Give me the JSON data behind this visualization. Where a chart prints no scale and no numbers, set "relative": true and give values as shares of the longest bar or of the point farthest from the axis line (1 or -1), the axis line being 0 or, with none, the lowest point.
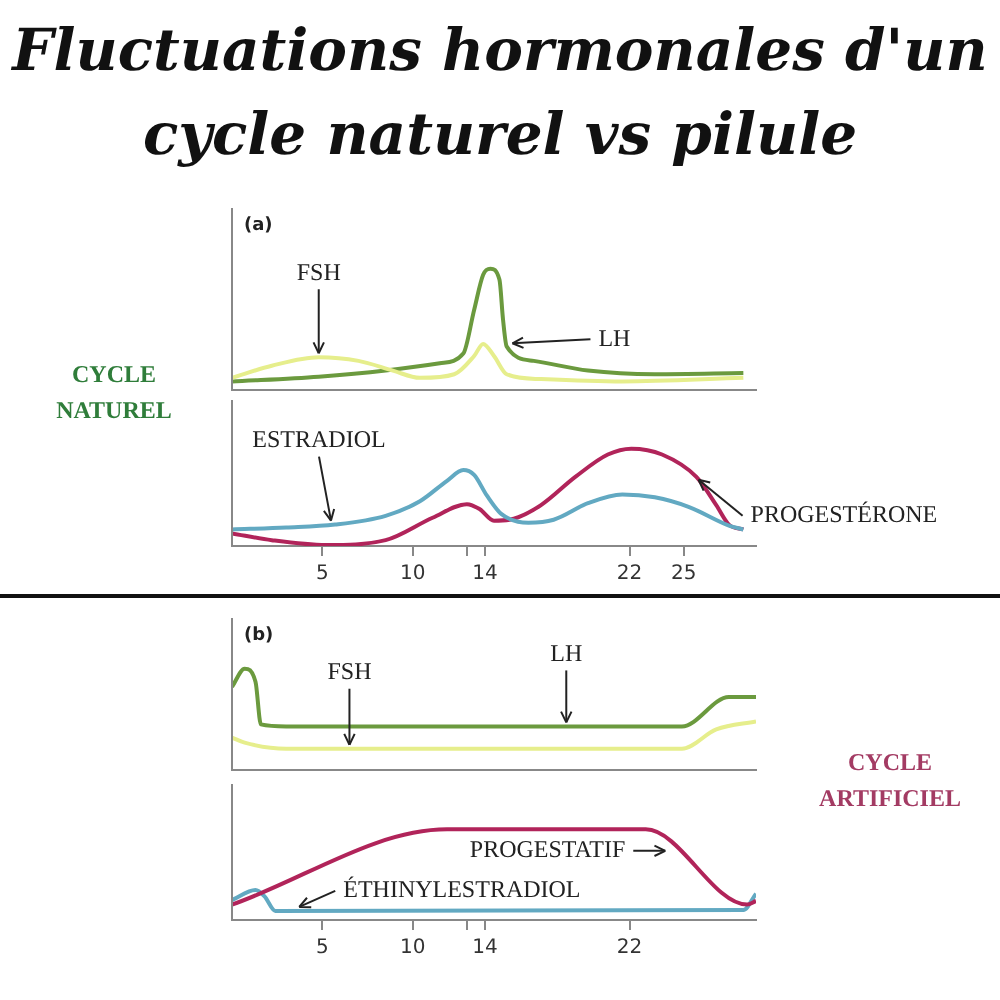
{
  "chart_data": [
    {
      "type": "line",
      "title": "Fluctuations hormonales d'un cycle naturel vs pilule",
      "annotations": [
        "(a)",
        "CYCLE NATUREL"
      ],
      "relative": true,
      "xlim": [
        0,
        29
      ],
      "tick_labels": false,
      "marker": "none",
      "line_style": "solid",
      "series": [
        {
          "name": "FSH",
          "color": "#e6ee8c",
          "x": [
            0,
            2.2,
            4.8,
            7.0,
            8.9,
            10.4,
            12.3,
            13.4,
            13.9,
            14.5,
            15.2,
            17.1,
            21.6,
            28.3
          ],
          "values": [
            0.1,
            0.2,
            0.27,
            0.24,
            0.16,
            0.1,
            0.13,
            0.28,
            0.38,
            0.28,
            0.13,
            0.09,
            0.07,
            0.1
          ]
        },
        {
          "name": "LH",
          "color": "#6b9a3e",
          "x": [
            0,
            4.8,
            8.5,
            11.5,
            12.8,
            13.4,
            13.9,
            14.3,
            14.8,
            15.0,
            15.2,
            16.7,
            19.7,
            23.4,
            28.3
          ],
          "values": [
            0.07,
            0.11,
            0.16,
            0.22,
            0.3,
            0.66,
            0.95,
            1,
            0.91,
            0.58,
            0.36,
            0.24,
            0.16,
            0.13,
            0.14
          ]
        }
      ]
    },
    {
      "type": "line",
      "relative": true,
      "xlim": [
        0,
        29
      ],
      "xticks": [
        5,
        10,
        {
          "value": 13,
          "label": null
        },
        14,
        22,
        25
      ],
      "tick_labels": "x",
      "marker": "none",
      "line_style": "solid",
      "series": [
        {
          "name": "ESTRADIOL",
          "color": "#62a9c2",
          "x": [
            0,
            3.0,
            5.7,
            8.5,
            10.4,
            11.9,
            12.8,
            13.4,
            14.1,
            14.9,
            16.4,
            17.8,
            19.7,
            21.6,
            23.4,
            25.3,
            27.5,
            28.3
          ],
          "values": [
            0.17,
            0.19,
            0.22,
            0.31,
            0.46,
            0.67,
            0.78,
            0.73,
            0.52,
            0.33,
            0.24,
            0.27,
            0.44,
            0.53,
            0.5,
            0.4,
            0.21,
            0.17
          ]
        },
        {
          "name": "PROGESTÉRONE",
          "color": "#b1245a",
          "x": [
            0,
            2.2,
            5.2,
            8.5,
            11.1,
            13.0,
            13.7,
            14.5,
            15.6,
            17.1,
            19.0,
            20.8,
            22.1,
            23.8,
            25.7,
            26.8,
            27.5,
            28.3
          ],
          "values": [
            0.13,
            0.06,
            0.01,
            0.06,
            0.29,
            0.43,
            0.38,
            0.26,
            0.28,
            0.42,
            0.71,
            0.94,
            1,
            0.94,
            0.71,
            0.42,
            0.22,
            0.17
          ]
        }
      ]
    },
    {
      "type": "line",
      "annotations": [
        "(b)",
        "CYCLE ARTIFICIEL"
      ],
      "relative": true,
      "xlim": [
        0,
        29
      ],
      "tick_labels": false,
      "marker": "none",
      "line_style": "solid",
      "series": [
        {
          "name": "FSH",
          "color": "#e6ee8c",
          "x": [
            0,
            0.7,
            3.0,
            24.9,
            26.8,
            29
          ],
          "values": [
            0.32,
            0.27,
            0.21,
            0.21,
            0.4,
            0.48
          ]
        },
        {
          "name": "LH",
          "color": "#6b9a3e",
          "x": [
            0,
            0.7,
            1.3,
            1.6,
            3.0,
            24.9,
            27.5,
            29
          ],
          "values": [
            0.82,
            1,
            0.87,
            0.45,
            0.43,
            0.43,
            0.72,
            0.72
          ]
        }
      ]
    },
    {
      "type": "line",
      "relative": true,
      "xlim": [
        0,
        29
      ],
      "xticks": [
        5,
        10,
        {
          "value": 13,
          "label": null
        },
        14,
        22
      ],
      "tick_labels": "x",
      "marker": "none",
      "line_style": "solid",
      "series": [
        {
          "name": "PROGESTATIF",
          "color": "#b1245a",
          "x": [
            0,
            11.9,
            22.9,
            28.5,
            29
          ],
          "values": [
            0.17,
            1,
            1,
            0.17,
            0.21
          ]
        },
        {
          "name": "ÉTHINYLESTRADIOL",
          "color": "#62a9c2",
          "x": [
            0,
            1.3,
            1.8,
            2.4,
            28.3,
            29
          ],
          "values": [
            0.22,
            0.33,
            0.26,
            0.1,
            0.11,
            0.29
          ]
        }
      ]
    }
  ]
}
